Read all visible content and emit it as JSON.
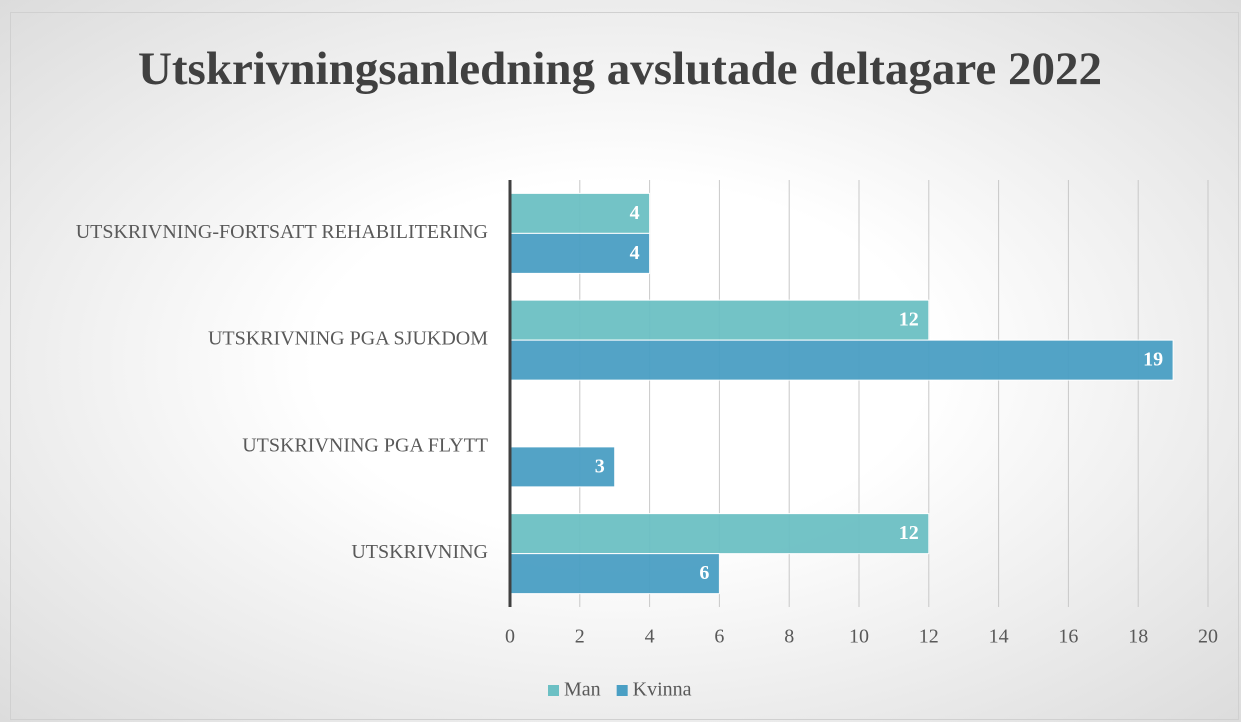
{
  "chart_data": {
    "type": "hbar",
    "title": "Utskrivningsanledning avslutade deltagare 2022",
    "categories": [
      "UTSKRIVNING-FORTSATT REHABILITERING",
      "UTSKRIVNING PGA SJUKDOM",
      "UTSKRIVNING PGA FLYTT",
      "UTSKRIVNING"
    ],
    "series": [
      {
        "name": "Man",
        "color": "#6cc0c4",
        "values": [
          4,
          12,
          null,
          12
        ]
      },
      {
        "name": "Kvinna",
        "color": "#4a9fc4",
        "values": [
          4,
          19,
          3,
          6
        ]
      }
    ],
    "xlim": [
      0,
      20
    ],
    "xticks": [
      0,
      2,
      4,
      6,
      8,
      10,
      12,
      14,
      16,
      18,
      20
    ],
    "grid": true,
    "legend": "bottom"
  }
}
